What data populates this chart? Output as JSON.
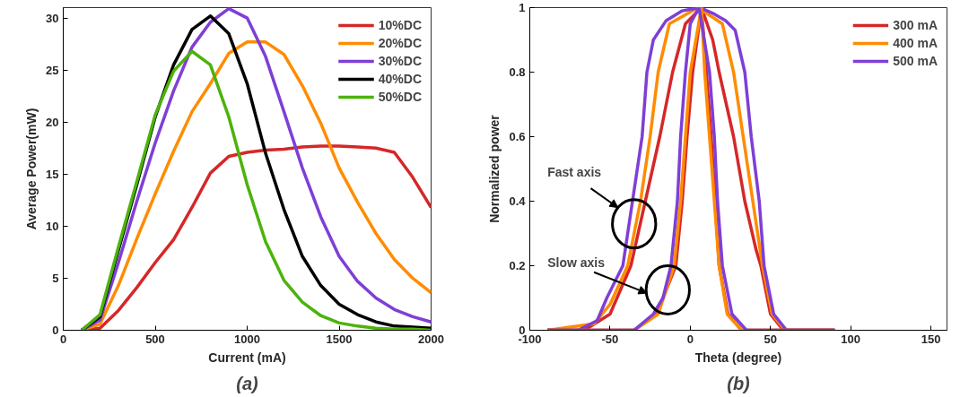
{
  "chart_data": [
    {
      "type": "line",
      "title": "(a)",
      "xlabel": "Current (mA)",
      "ylabel": "Average Power(mW)",
      "x": [
        100,
        200,
        300,
        400,
        500,
        600,
        700,
        800,
        900,
        1000,
        1100,
        1200,
        1300,
        1400,
        1500,
        1600,
        1700,
        1800,
        1900,
        2000
      ],
      "xlim": [
        0,
        2000
      ],
      "ylim": [
        0,
        31
      ],
      "xticks": [
        0,
        500,
        1000,
        1500,
        2000
      ],
      "yticks": [
        0,
        5,
        10,
        15,
        20,
        25,
        30
      ],
      "grid": false,
      "legend": "top right",
      "line_style": "solid",
      "marker": "none",
      "series": [
        {
          "name": "10%DC",
          "color": "#d62728",
          "values": [
            0,
            0.2,
            1.9,
            4.1,
            6.5,
            8.7,
            11.8,
            15.1,
            16.7,
            17.1,
            17.3,
            17.4,
            17.6,
            17.7,
            17.7,
            17.6,
            17.5,
            17.1,
            14.7,
            11.8
          ]
        },
        {
          "name": "20%DC",
          "color": "#ff8c00",
          "values": [
            0,
            0.6,
            4.3,
            8.8,
            13.1,
            17.2,
            21.0,
            23.7,
            26.6,
            27.7,
            27.7,
            26.5,
            23.5,
            19.9,
            15.6,
            12.3,
            9.3,
            6.8,
            5.0,
            3.6
          ]
        },
        {
          "name": "30%DC",
          "color": "#7e3fd6",
          "values": [
            0,
            1.0,
            6.5,
            12.4,
            18.0,
            23.0,
            27.2,
            29.6,
            30.9,
            30.0,
            26.3,
            21.0,
            15.6,
            10.9,
            7.1,
            4.7,
            3.1,
            2.0,
            1.3,
            0.8
          ]
        },
        {
          "name": "40%DC",
          "color": "#000000",
          "values": [
            0,
            1.3,
            7.7,
            14.0,
            20.5,
            25.5,
            28.9,
            30.2,
            28.5,
            23.7,
            17.0,
            11.6,
            7.1,
            4.3,
            2.5,
            1.5,
            0.8,
            0.4,
            0.3,
            0.2
          ]
        },
        {
          "name": "50%DC",
          "color": "#4cb30a",
          "values": [
            0,
            1.5,
            8.0,
            14.3,
            20.7,
            24.9,
            26.8,
            25.5,
            20.5,
            14.0,
            8.5,
            4.8,
            2.7,
            1.4,
            0.7,
            0.4,
            0.2,
            0.1,
            0.1,
            0
          ]
        }
      ]
    },
    {
      "type": "line",
      "title": "(b)",
      "xlabel": "Theta (degree)",
      "ylabel": "Normalized power",
      "xlim": [
        -100,
        160
      ],
      "ylim": [
        0,
        1
      ],
      "xticks": [
        -100,
        -50,
        0,
        50,
        100,
        150
      ],
      "yticks": [
        0,
        0.2,
        0.4,
        0.6,
        0.8,
        1
      ],
      "grid": false,
      "legend": "top right",
      "line_style": "solid",
      "marker": "none",
      "annotations": [
        "Fast axis",
        "Slow axis"
      ],
      "series": [
        {
          "color": "#d62728",
          "x": [
            -89,
            -66,
            -50,
            -37,
            -28,
            -19,
            -11,
            -3,
            7,
            14,
            18,
            27,
            34,
            41,
            44,
            50,
            58,
            90
          ],
          "values": [
            0,
            0,
            0.05,
            0.2,
            0.4,
            0.6,
            0.8,
            0.95,
            1,
            0.9,
            0.8,
            0.6,
            0.4,
            0.25,
            0.2,
            0.05,
            0,
            0
          ]
        },
        {
          "color": "#ff8c00",
          "x": [
            -89,
            -60,
            -50,
            -39,
            -31,
            -25,
            -20,
            -13,
            5,
            20,
            27,
            33,
            39,
            45,
            51,
            59,
            90
          ],
          "values": [
            0,
            0.02,
            0.08,
            0.2,
            0.4,
            0.6,
            0.8,
            0.95,
            1,
            0.95,
            0.8,
            0.6,
            0.4,
            0.2,
            0.05,
            0,
            0
          ]
        },
        {
          "color": "#7e3fd6",
          "x": [
            -89,
            -70,
            -58,
            -52,
            -42,
            -36,
            -30,
            -27,
            -23,
            -15,
            -5,
            6,
            15,
            22,
            28,
            34,
            38,
            43,
            46,
            52,
            60,
            90
          ],
          "values": [
            0,
            0,
            0.03,
            0.1,
            0.2,
            0.4,
            0.6,
            0.8,
            0.9,
            0.96,
            0.99,
            1,
            0.98,
            0.96,
            0.93,
            0.8,
            0.6,
            0.4,
            0.2,
            0.05,
            0,
            0
          ]
        },
        {
          "name": "300 mA",
          "color": "#d62728",
          "x": [
            -89,
            -35,
            -21,
            -9,
            -5,
            -2,
            1.5,
            7,
            10,
            13,
            15.5,
            18,
            23.5,
            32,
            90
          ],
          "values": [
            0,
            0,
            0.05,
            0.2,
            0.4,
            0.6,
            0.8,
            1,
            0.8,
            0.6,
            0.4,
            0.2,
            0.05,
            0,
            0
          ]
        },
        {
          "name": "400 mA",
          "color": "#ff8c00",
          "x": [
            -89,
            -35,
            -20,
            -10,
            -6,
            -3,
            0,
            7,
            9,
            12,
            15,
            18,
            23,
            32,
            90
          ],
          "values": [
            0,
            0,
            0.05,
            0.2,
            0.4,
            0.6,
            0.8,
            1,
            0.8,
            0.6,
            0.4,
            0.2,
            0.05,
            0,
            0
          ]
        },
        {
          "name": "500 mA",
          "color": "#7e3fd6",
          "x": [
            -89,
            -35,
            -23,
            -17,
            -12,
            -8,
            -6,
            -3,
            0,
            5.5,
            12,
            15,
            17,
            20,
            26,
            35,
            90
          ],
          "values": [
            0,
            0,
            0.05,
            0.1,
            0.2,
            0.4,
            0.6,
            0.8,
            0.95,
            1,
            0.8,
            0.6,
            0.4,
            0.2,
            0.05,
            0,
            0
          ]
        }
      ]
    }
  ]
}
